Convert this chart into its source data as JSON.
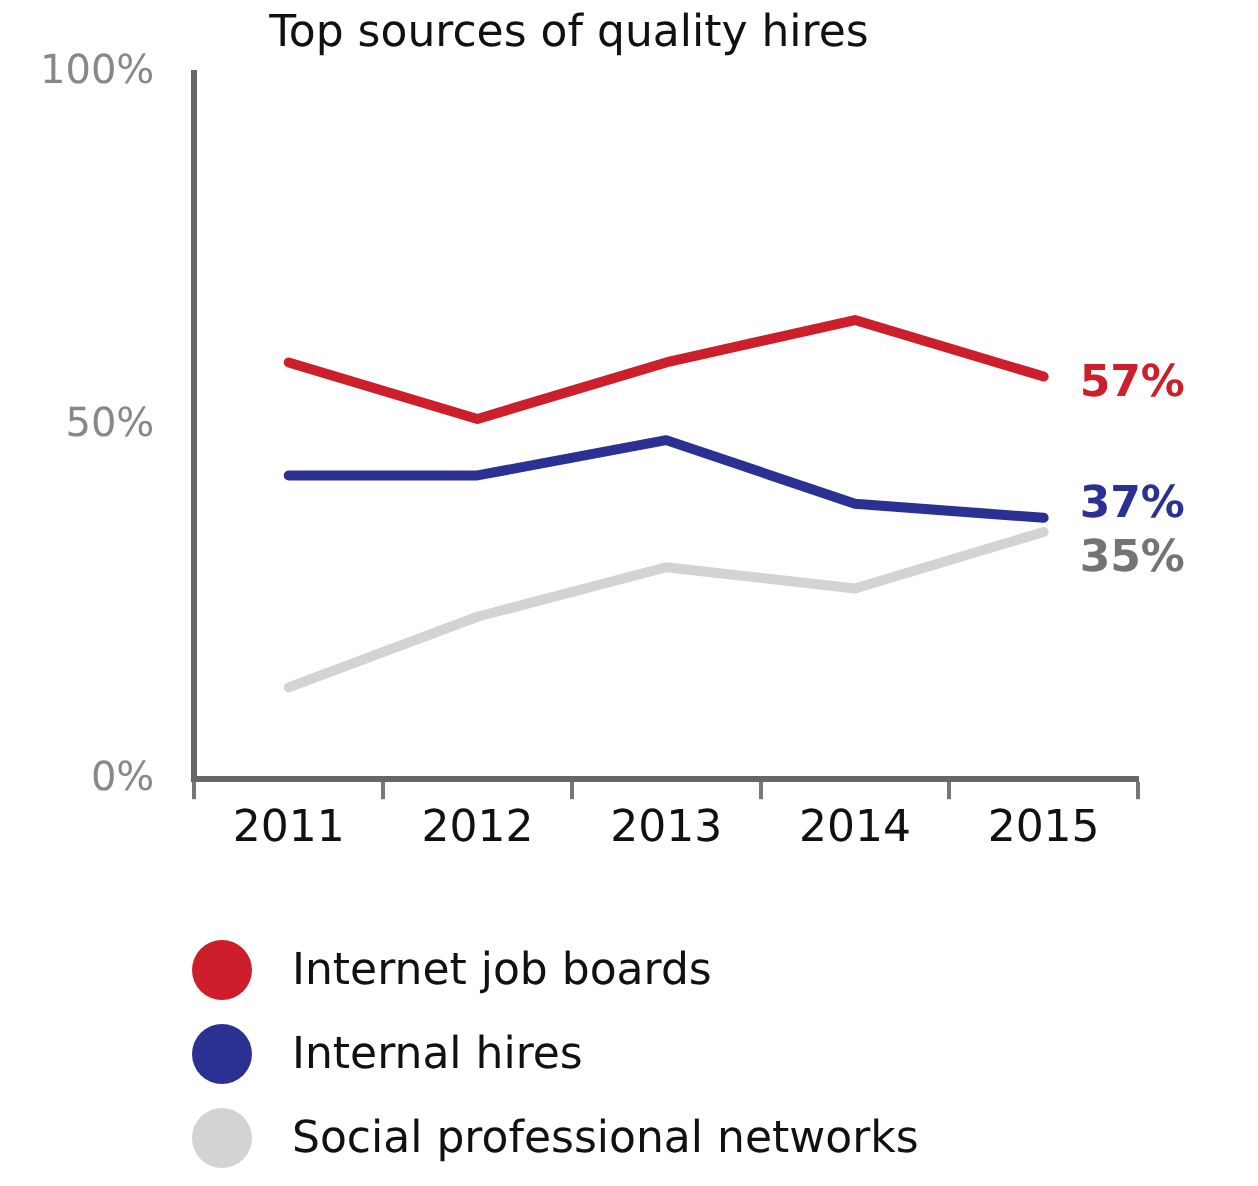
{
  "chart_data": {
    "type": "line",
    "title": "Top sources of quality hires",
    "categories": [
      "2011",
      "2012",
      "2013",
      "2014",
      "2015"
    ],
    "series": [
      {
        "name": "Internet job boards",
        "color": "#cc1f2b",
        "values": [
          59,
          51,
          59,
          65,
          57
        ],
        "value_labels": [
          null,
          null,
          null,
          null,
          "57%"
        ]
      },
      {
        "name": "Internal hires",
        "color": "#2b3192",
        "values": [
          43,
          43,
          48,
          39,
          37
        ],
        "value_labels": [
          null,
          null,
          null,
          null,
          "37%"
        ]
      },
      {
        "name": "Social professional networks",
        "color": "#d3d3d3",
        "values": [
          13,
          23,
          30,
          27,
          35
        ],
        "value_labels": [
          null,
          null,
          null,
          null,
          "35%"
        ]
      }
    ],
    "ylim": [
      0,
      100
    ],
    "yticks": [
      {
        "value": 0,
        "label": "0%"
      },
      {
        "value": 50,
        "label": "50%"
      },
      {
        "value": 100,
        "label": "100%"
      }
    ],
    "grid": false,
    "legend": "bottom",
    "marker": "none",
    "line_style": "solid"
  }
}
